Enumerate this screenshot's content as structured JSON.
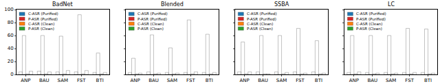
{
  "chart_data": [
    {
      "type": "bar",
      "title": "BadNet",
      "categories": [
        "ANP",
        "BAU",
        "SAM",
        "FST",
        "BTI"
      ],
      "series": [
        {
          "name": "C-ASR (Purified)",
          "color": "#1f77b4",
          "values": [
            4,
            5,
            4,
            4,
            3
          ]
        },
        {
          "name": "P-ASR (Purified)",
          "color": "#d62728",
          "values": [
            60,
            60,
            59,
            92,
            33
          ]
        },
        {
          "name": "C-ASR (Clean)",
          "color": "#ff7f0e",
          "values": [
            1,
            1,
            1,
            1,
            1
          ]
        },
        {
          "name": "P-ASR (Clean)",
          "color": "#2ca02c",
          "values": [
            5,
            4,
            6,
            6,
            3
          ]
        }
      ],
      "ylim": [
        0,
        100
      ],
      "yticks": [
        0,
        20,
        40,
        60,
        80,
        100
      ],
      "legend": "upper left"
    },
    {
      "type": "bar",
      "title": "Blended",
      "categories": [
        "ANP",
        "BAU",
        "SAM",
        "FST",
        "BTI"
      ],
      "series": [
        {
          "name": "C-ASR (Purified)",
          "color": "#1f77b4",
          "values": [
            3,
            4,
            3,
            3,
            3
          ]
        },
        {
          "name": "P-ASR (Purified)",
          "color": "#d62728",
          "values": [
            25,
            61,
            41,
            84,
            62
          ]
        },
        {
          "name": "C-ASR (Clean)",
          "color": "#ff7f0e",
          "values": [
            1,
            1,
            1,
            1,
            1
          ]
        },
        {
          "name": "P-ASR (Clean)",
          "color": "#2ca02c",
          "values": [
            2,
            2,
            2,
            4,
            3
          ]
        }
      ],
      "ylim": [
        0,
        100
      ],
      "yticks": [
        0,
        20,
        40,
        60,
        80,
        100
      ],
      "legend": "upper left",
      "tick_labels": "x"
    },
    {
      "type": "bar",
      "title": "SSBA",
      "categories": [
        "ANP",
        "BAU",
        "SAM",
        "FST",
        "BTI"
      ],
      "series": [
        {
          "name": "C-ASR (Purified)",
          "color": "#1f77b4",
          "values": [
            4,
            4,
            4,
            4,
            4
          ]
        },
        {
          "name": "P-ASR (Purified)",
          "color": "#d62728",
          "values": [
            50,
            60,
            60,
            71,
            52
          ]
        },
        {
          "name": "C-ASR (Clean)",
          "color": "#ff7f0e",
          "values": [
            1,
            1,
            1,
            1,
            1
          ]
        },
        {
          "name": "P-ASR (Clean)",
          "color": "#2ca02c",
          "values": [
            4,
            1,
            3,
            2,
            2
          ]
        }
      ],
      "ylim": [
        0,
        100
      ],
      "yticks": [
        0,
        20,
        40,
        60,
        80,
        100
      ],
      "legend": "upper left",
      "tick_labels": "x"
    },
    {
      "type": "bar",
      "title": "LC",
      "categories": [
        "ANP",
        "BAU",
        "SAM",
        "FST",
        "BTI"
      ],
      "series": [
        {
          "name": "C-ASR (Purified)",
          "color": "#1f77b4",
          "values": [
            3,
            3,
            3,
            3,
            3
          ]
        },
        {
          "name": "P-ASR (Purified)",
          "color": "#d62728",
          "values": [
            60,
            60,
            60,
            71,
            70
          ]
        },
        {
          "name": "C-ASR (Clean)",
          "color": "#ff7f0e",
          "values": [
            1,
            1,
            1,
            1,
            1
          ]
        },
        {
          "name": "P-ASR (Clean)",
          "color": "#2ca02c",
          "values": [
            4,
            2,
            2,
            3,
            2
          ]
        }
      ],
      "ylim": [
        0,
        100
      ],
      "yticks": [
        0,
        20,
        40,
        60,
        80,
        100
      ],
      "legend": "upper left",
      "tick_labels": "x"
    }
  ]
}
